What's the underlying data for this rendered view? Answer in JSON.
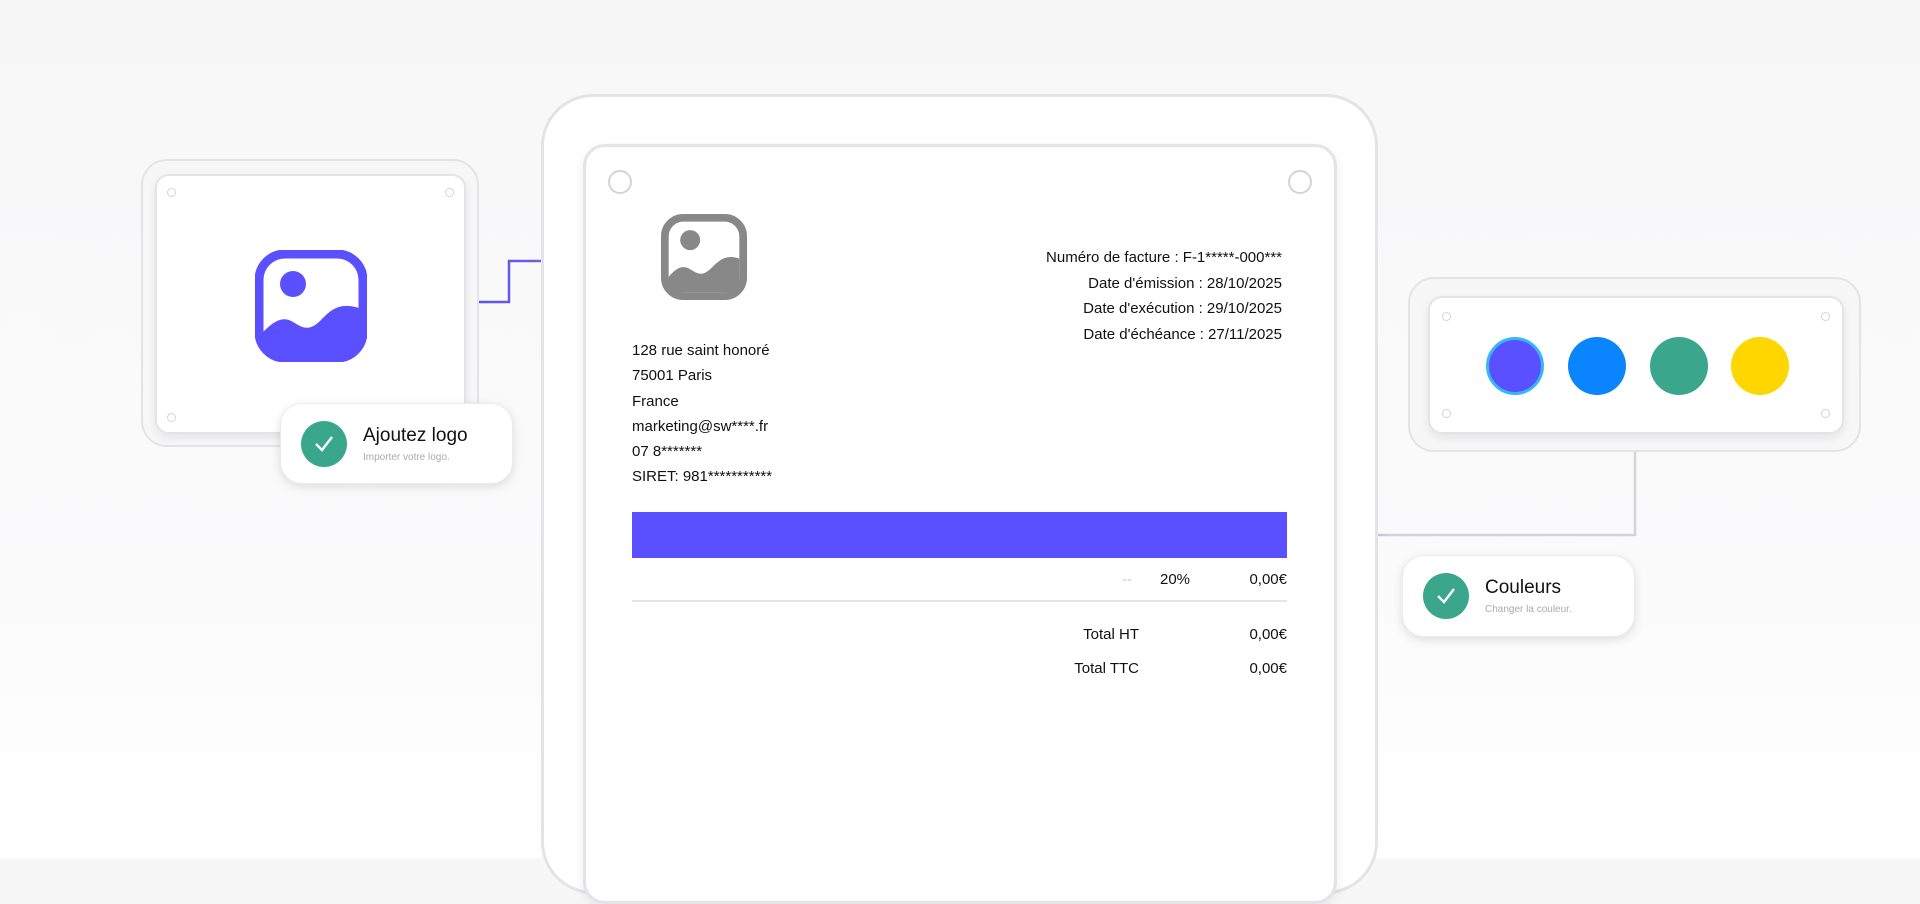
{
  "logo_panel": {
    "title": "Ajoutez logo",
    "subtitle": "Importer votre logo.",
    "icon": "image-icon",
    "accent": "#5b50ff"
  },
  "color_panel": {
    "title": "Couleurs",
    "subtitle": "Changer la couleur.",
    "swatches": [
      "#5b50ff",
      "#0a84ff",
      "#3aa68c",
      "#ffd600"
    ],
    "selected": 0
  },
  "invoice": {
    "meta": [
      "Numéro de facture : F-1*****-000***",
      "Date d'émission : 28/10/2025",
      "Date d'exécution : 29/10/2025",
      "Date d'échéance : 27/11/2025"
    ],
    "address": [
      "128 rue saint honoré",
      "75001 Paris",
      "France",
      "marketing@sw****.fr",
      "07 8*******",
      "SIRET: 981***********"
    ],
    "header_bar_color": "#5b50ff",
    "row": {
      "qty": "--",
      "vat": "20%",
      "amount": "0,00€"
    },
    "totals": [
      {
        "label": "Total HT",
        "value": "0,00€"
      },
      {
        "label": "Total TTC",
        "value": "0,00€"
      }
    ]
  }
}
